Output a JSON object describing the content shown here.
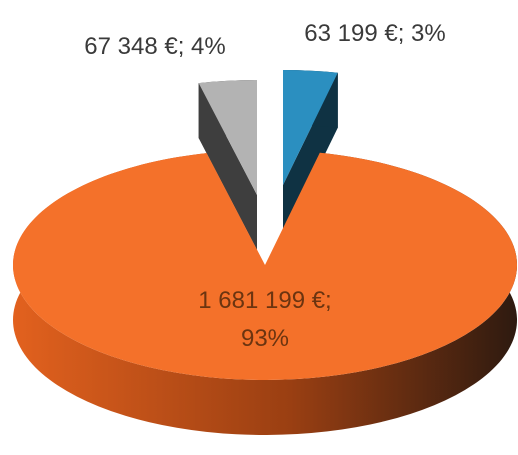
{
  "chart_data": {
    "type": "pie3d",
    "series": [
      {
        "values": [
          63199,
          1681199,
          67348
        ],
        "value_labels": [
          "63 199 €; 3%",
          "1 681 199 €; 93%",
          "67 348 €; 4%"
        ],
        "colors": [
          "#2b8fc0",
          "#f4712a",
          "#b3b3b3"
        ]
      }
    ]
  }
}
